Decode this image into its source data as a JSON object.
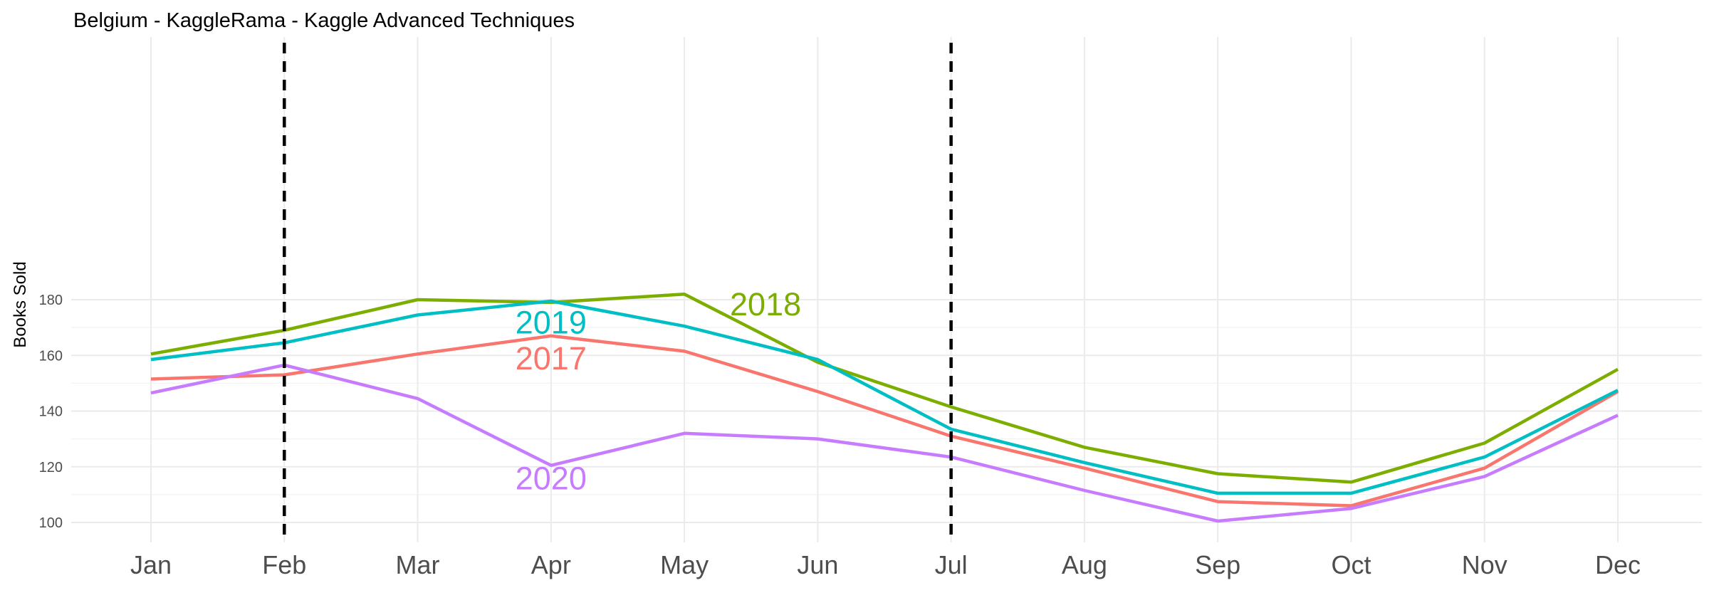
{
  "chart_data": {
    "type": "line",
    "title": "Belgium - KaggleRama - Kaggle Advanced Techniques",
    "xlabel": "",
    "ylabel": "Books Sold",
    "categories": [
      "Jan",
      "Feb",
      "Mar",
      "Apr",
      "May",
      "Jun",
      "Jul",
      "Aug",
      "Sep",
      "Oct",
      "Nov",
      "Dec"
    ],
    "ylim": [
      97,
      186
    ],
    "yticks": [
      100,
      120,
      140,
      160,
      180
    ],
    "grid": true,
    "legend": "none",
    "reference_lines": [
      {
        "category": "Feb",
        "style": "dashed",
        "color": "#000000"
      },
      {
        "category": "Jul",
        "style": "dashed",
        "color": "#000000"
      }
    ],
    "series": [
      {
        "name": "2017",
        "color": "#F8766D",
        "label_at": "Apr",
        "label_value": 159,
        "values": [
          151.5,
          153,
          160.5,
          167,
          161.5,
          147,
          131,
          119.5,
          107.5,
          106,
          119.5,
          147
        ]
      },
      {
        "name": "2018",
        "color": "#7CAE00",
        "label_at": "May",
        "label_value": 178.5,
        "values": [
          160.5,
          169,
          180,
          179,
          182,
          157.5,
          141.5,
          127,
          117.5,
          114.5,
          128.5,
          155
        ]
      },
      {
        "name": "2019",
        "color": "#00BFC4",
        "label_at": "Apr",
        "label_value": 172,
        "values": [
          158.5,
          164.5,
          174.5,
          179.5,
          170.5,
          158.5,
          133.5,
          121.5,
          110.5,
          110.5,
          123.5,
          147.5
        ]
      },
      {
        "name": "2020",
        "color": "#C77CFF",
        "label_at": "Apr",
        "label_value": 116,
        "values": [
          146.5,
          156.5,
          144.5,
          120.5,
          132,
          130,
          123.5,
          111.5,
          100.5,
          105,
          116.5,
          138.5
        ]
      }
    ]
  }
}
